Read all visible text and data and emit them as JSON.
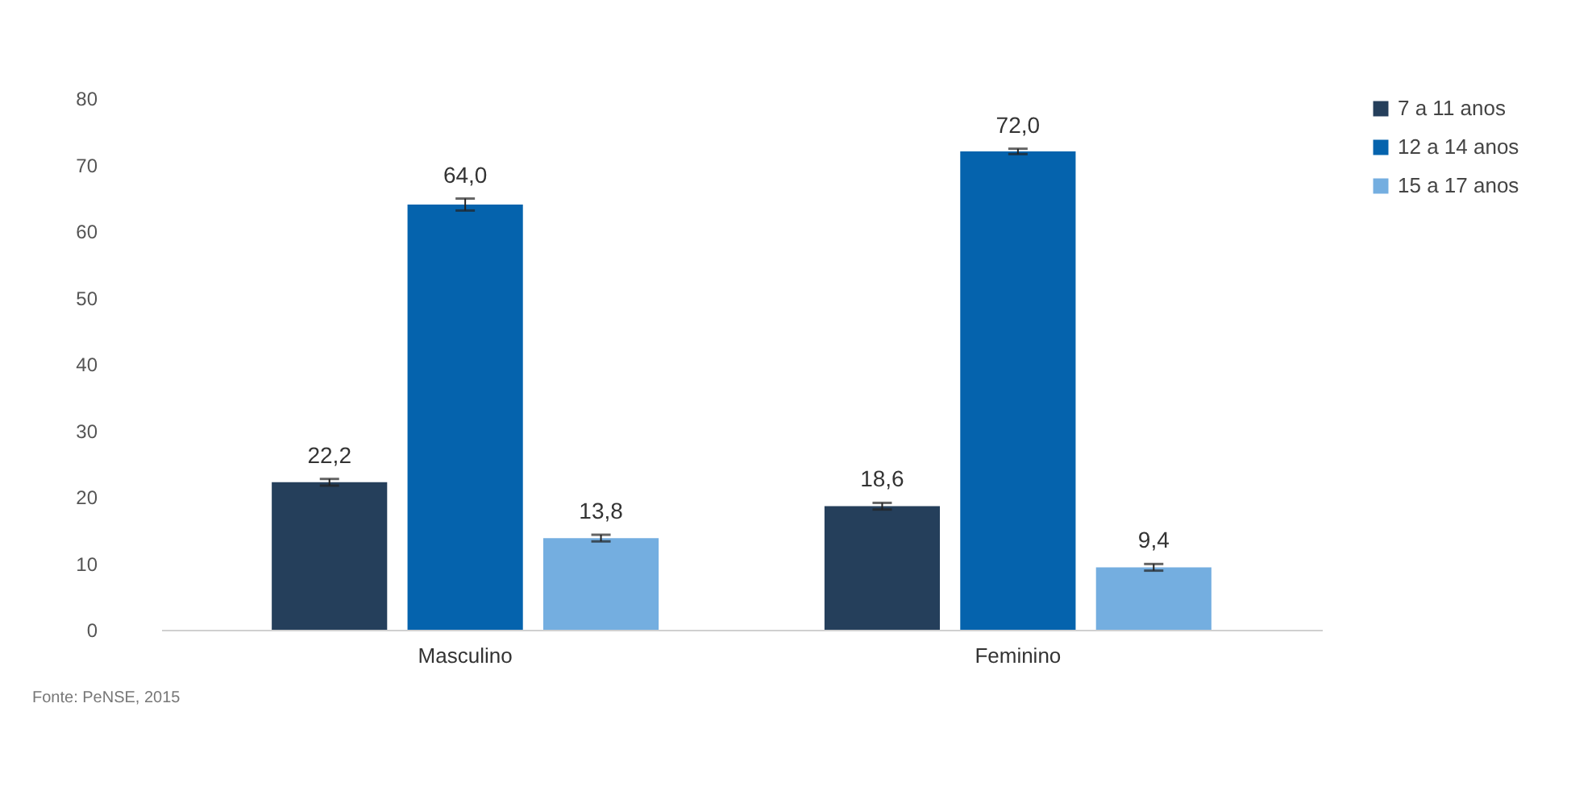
{
  "chart_data": {
    "type": "bar",
    "categories": [
      "Masculino",
      "Feminino"
    ],
    "series": [
      {
        "name": "7 a 11 anos",
        "color": "#253f5b",
        "values": [
          22.2,
          18.6
        ],
        "errors": [
          0.5,
          0.5
        ],
        "value_labels": [
          "22,2",
          "18,6"
        ]
      },
      {
        "name": "12 a 14 anos",
        "color": "#0563ad",
        "values": [
          64.0,
          72.0
        ],
        "errors": [
          0.9,
          0.4
        ],
        "value_labels": [
          "64,0",
          "72,0"
        ]
      },
      {
        "name": "15 a 17 anos",
        "color": "#74aee0",
        "values": [
          13.8,
          9.4
        ],
        "errors": [
          0.5,
          0.5
        ],
        "value_labels": [
          "13,8",
          "9,4"
        ]
      }
    ],
    "ylim": [
      0,
      80
    ],
    "yticks": [
      0,
      10,
      20,
      30,
      40,
      50,
      60,
      70,
      80
    ],
    "grid": false,
    "legend": "right",
    "annotations": [
      "Fonte: PeNSE, 2015"
    ]
  }
}
